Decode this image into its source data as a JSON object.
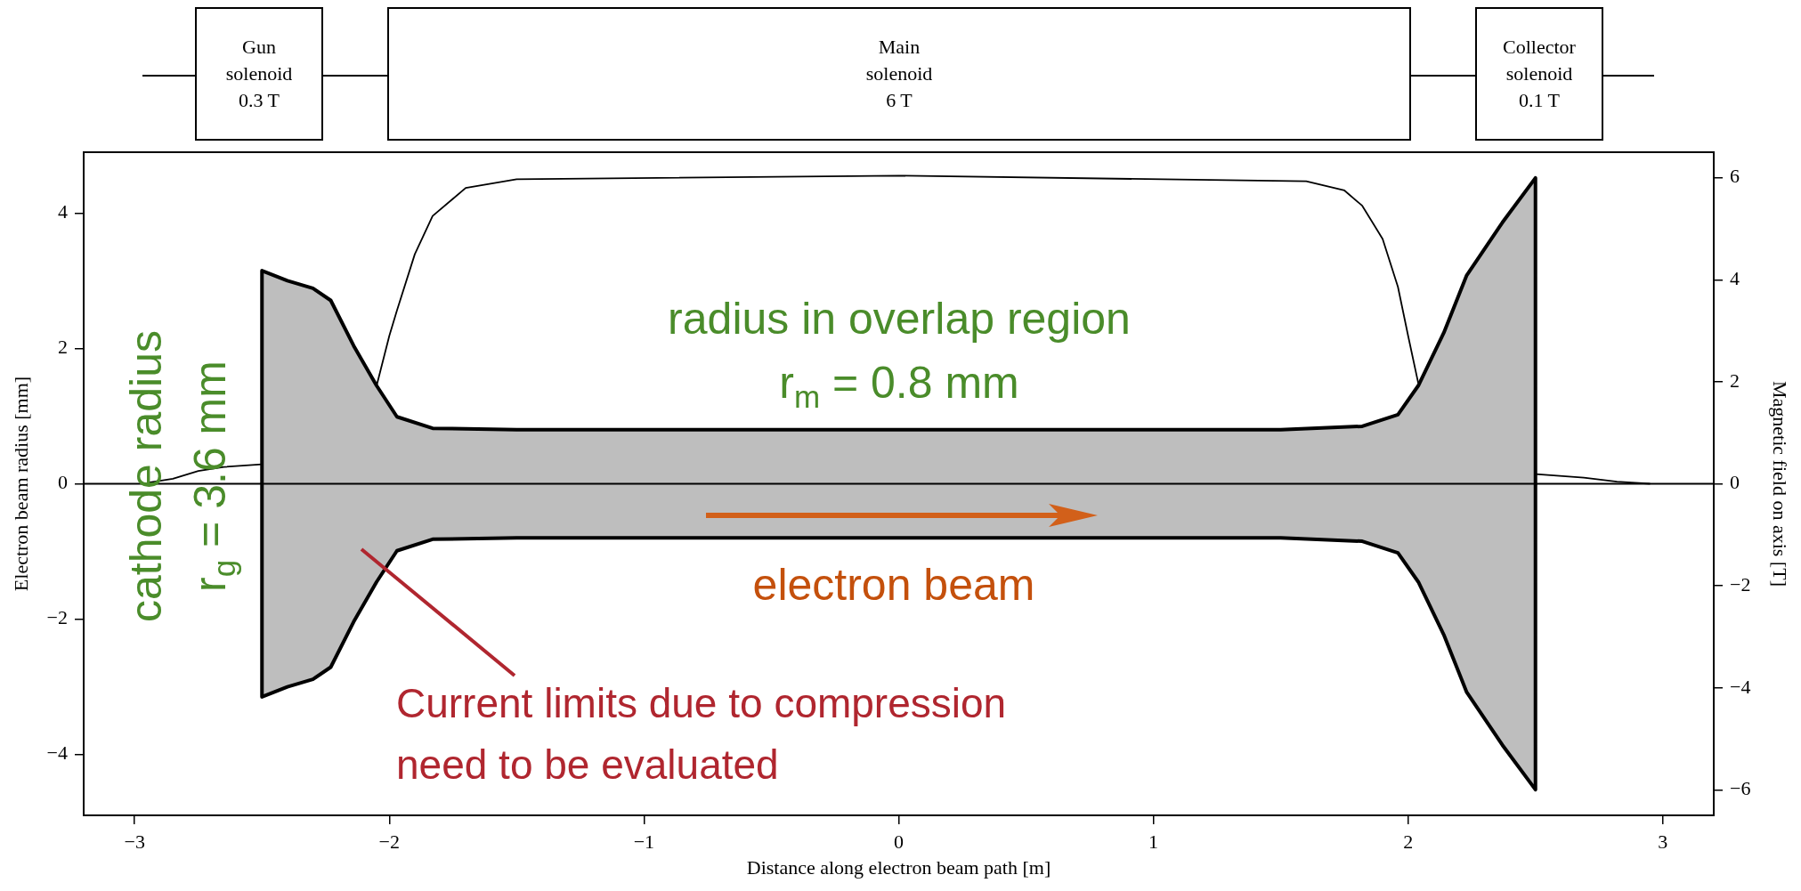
{
  "chart_data": {
    "type": "line",
    "xlabel": "Distance along electron beam path [m]",
    "ylabel": "Electron beam radius [mm]",
    "y2label": "Magnetic field on axis [T]",
    "xlim": [
      -3.2,
      3.2
    ],
    "xticks": [
      -3,
      -2,
      -1,
      0,
      1,
      2,
      3
    ],
    "ylim": [
      -4.9,
      4.9
    ],
    "yticks": [
      -4,
      -2,
      0,
      2,
      4
    ],
    "y2lim": [
      -6.5,
      6.5
    ],
    "y2ticks": [
      -6,
      -4,
      -2,
      0,
      2,
      4,
      6
    ],
    "grid": false,
    "legend": false,
    "marker": "none",
    "line_style": "solid",
    "series": [
      {
        "type": "area",
        "color": "#bebebe",
        "x": [
          -2.5,
          -2.5,
          -2.4,
          -2.3,
          -2.23,
          -2.14,
          -2.05,
          -1.97,
          -1.83,
          -1.5,
          0,
          1.5,
          1.82,
          1.96,
          2.04,
          2.14,
          2.23,
          2.37,
          2.5,
          2.5
        ],
        "values": [
          0,
          3.15,
          3.0,
          2.89,
          2.71,
          2.04,
          1.45,
          0.99,
          0.82,
          0.8,
          0.8,
          0.8,
          0.85,
          1.02,
          1.45,
          2.23,
          3.08,
          3.86,
          4.52,
          0
        ]
      },
      {
        "type": "area",
        "color": "#bebebe",
        "x": [
          -2.5,
          -2.5,
          -2.4,
          -2.3,
          -2.23,
          -2.14,
          -2.05,
          -1.97,
          -1.83,
          -1.5,
          0,
          1.5,
          1.82,
          1.96,
          2.04,
          2.14,
          2.23,
          2.37,
          2.5,
          2.5
        ],
        "values": [
          0,
          -3.15,
          -3.0,
          -2.89,
          -2.71,
          -2.04,
          -1.45,
          -0.99,
          -0.82,
          -0.8,
          -0.8,
          -0.8,
          -0.85,
          -1.02,
          -1.45,
          -2.23,
          -3.08,
          -3.86,
          -4.52,
          0
        ]
      },
      {
        "type": "line",
        "axis": "y2",
        "color": "#000000",
        "x": [
          -2.95,
          -2.85,
          -2.75,
          -2.65,
          -2.5,
          -2.3,
          -2.05,
          -2.0,
          -1.97,
          -1.9,
          -1.83,
          -1.7,
          -1.5,
          0,
          1.6,
          1.75,
          1.82,
          1.9,
          1.96,
          2.0,
          2.04,
          2.3,
          2.5,
          2.69,
          2.82,
          2.95
        ],
        "values": [
          0.02,
          0.1,
          0.25,
          0.33,
          0.38,
          null,
          1.92,
          2.9,
          3.4,
          4.5,
          5.25,
          5.8,
          5.97,
          6.04,
          5.93,
          5.75,
          5.45,
          4.8,
          3.86,
          2.9,
          1.97,
          null,
          0.19,
          0.12,
          0.04,
          0
        ]
      }
    ],
    "ref_lines": [
      {
        "axis": "y",
        "value": 0,
        "color": "#000000"
      }
    ],
    "annotations": [
      "Gun\nsolenoid\n0.3 T",
      "Main\nsolenoid\n6 T",
      "Collector\nsolenoid\n0.1 T",
      "cathode radius\nr$_{g}$ = 3.6 mm",
      "radius in overlap region\nr$_{m}$ = 0.8 mm",
      "electron beam",
      "Current limits due to compression\nneed to be evaluated"
    ]
  }
}
